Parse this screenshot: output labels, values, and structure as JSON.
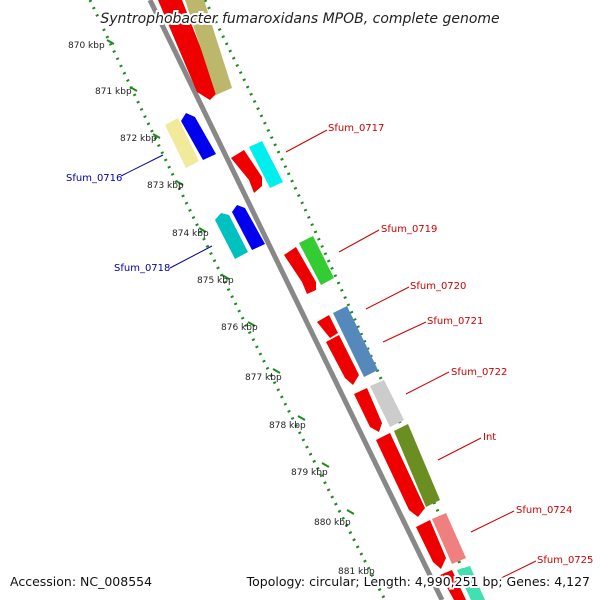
{
  "title": "Syntrophobacter fumaroxidans MPOB, complete genome",
  "footer": {
    "accession": "Accession: NC_008554",
    "topology": "Topology: circular; Length: 4,990,251 bp; Genes: 4,127"
  },
  "ticks": [
    "870 kbp",
    "871 kbp",
    "872 kbp",
    "873 kbp",
    "874 kbp",
    "875 kbp",
    "876 kbp",
    "877 kbp",
    "878 kbp",
    "879 kbp",
    "880 kbp",
    "881 kbp"
  ],
  "colors": {
    "backbone": "#8c8c8c",
    "dotted_ring": "#1f8a1f",
    "forward_label": "#cc0000",
    "reverse_label": "#0000aa"
  },
  "genes": [
    {
      "name": "",
      "strand": "reverse",
      "color": "#f0ea9a"
    },
    {
      "name": "",
      "strand": "reverse",
      "color": "#0000ee"
    },
    {
      "name": "Sfum_0716",
      "strand": "reverse",
      "color": "#0000ee"
    },
    {
      "name": "Sfum_0717",
      "strand": "forward",
      "color": "#00eeee"
    },
    {
      "name": "Sfum_0718",
      "strand": "reverse",
      "color": "#0000ee"
    },
    {
      "name": "Sfum_0719",
      "strand": "forward",
      "color": "#33cc33"
    },
    {
      "name": "Sfum_0720",
      "strand": "forward",
      "color": "#5588bb"
    },
    {
      "name": "Sfum_0721",
      "strand": "forward",
      "color": "#5588bb"
    },
    {
      "name": "Sfum_0722",
      "strand": "forward",
      "color": "#cccccc"
    },
    {
      "name": "Int",
      "strand": "forward",
      "color": "#6b8e23"
    },
    {
      "name": "Sfum_0724",
      "strand": "forward",
      "color": "#f08080"
    },
    {
      "name": "Sfum_0725",
      "strand": "forward",
      "color": "#40e0b0"
    }
  ]
}
